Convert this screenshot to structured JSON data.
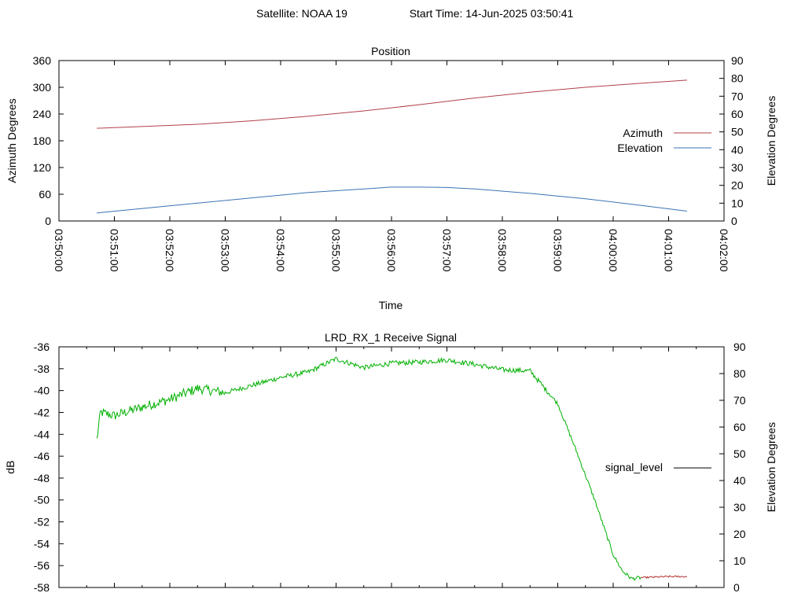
{
  "header": {
    "satellite": "Satellite: NOAA 19",
    "start_time": "Start Time: 14-Jun-2025 03:50:41"
  },
  "colors": {
    "azimuth": "#b0404a",
    "elevation": "#3a73b5",
    "signal": "#00b000",
    "signal_tail": "#b03030",
    "axis": "#000000"
  },
  "chart_data": [
    {
      "type": "line",
      "title": "Position",
      "xlabel": "Time",
      "ylabel": "Azimuth Degrees",
      "y2label": "Elevation Degrees",
      "xlim": [
        "03:50:00",
        "04:02:00"
      ],
      "ylim": [
        0,
        360
      ],
      "y2lim": [
        0,
        90
      ],
      "xticks": [
        "03:50:00",
        "03:51:00",
        "03:52:00",
        "03:53:00",
        "03:54:00",
        "03:55:00",
        "03:56:00",
        "03:57:00",
        "03:58:00",
        "03:59:00",
        "04:00:00",
        "04:01:00",
        "04:02:00"
      ],
      "yticks": [
        "0",
        "60",
        "120",
        "180",
        "240",
        "300",
        "360"
      ],
      "y2ticks": [
        "0",
        "10",
        "20",
        "30",
        "40",
        "50",
        "60",
        "70",
        "80",
        "90"
      ],
      "legend_position": "right",
      "series": [
        {
          "name": "Azimuth",
          "axis": "y",
          "x": [
            "03:50:41",
            "03:51:30",
            "03:52:30",
            "03:53:30",
            "03:54:30",
            "03:55:30",
            "03:56:30",
            "03:57:30",
            "03:58:30",
            "03:59:30",
            "04:00:30",
            "04:01:20"
          ],
          "values": [
            208,
            212,
            217,
            225,
            235,
            247,
            261,
            276,
            289,
            300,
            309,
            316
          ]
        },
        {
          "name": "Elevation",
          "axis": "y2",
          "x": [
            "03:50:41",
            "03:51:30",
            "03:52:30",
            "03:53:30",
            "03:54:30",
            "03:55:30",
            "03:56:00",
            "03:56:30",
            "03:57:00",
            "03:57:30",
            "03:58:30",
            "03:59:30",
            "04:00:30",
            "04:01:20"
          ],
          "values": [
            4.5,
            7,
            10,
            13,
            16,
            18,
            19,
            19,
            18.8,
            18,
            15.5,
            12.5,
            8.8,
            5.5
          ]
        }
      ]
    },
    {
      "type": "line",
      "title": "LRD_RX_1 Receive Signal",
      "ylabel": "dB",
      "y2label": "Elevation Degrees",
      "xlim": [
        "03:50:00",
        "04:02:00"
      ],
      "ylim": [
        -58,
        -36
      ],
      "y2lim": [
        0,
        90
      ],
      "yticks": [
        "-58",
        "-56",
        "-54",
        "-52",
        "-50",
        "-48",
        "-46",
        "-44",
        "-42",
        "-40",
        "-38",
        "-36"
      ],
      "y2ticks": [
        "0",
        "10",
        "20",
        "30",
        "40",
        "50",
        "60",
        "70",
        "80",
        "90"
      ],
      "legend_position": "right",
      "series": [
        {
          "name": "signal_level",
          "axis": "y",
          "x": [
            "03:50:41",
            "03:50:45",
            "03:51:00",
            "03:51:30",
            "03:52:00",
            "03:52:30",
            "03:53:00",
            "03:53:30",
            "03:54:00",
            "03:54:30",
            "03:55:00",
            "03:55:30",
            "03:56:00",
            "03:56:30",
            "03:57:00",
            "03:57:30",
            "03:58:00",
            "03:58:30",
            "03:59:00",
            "03:59:20",
            "03:59:40",
            "04:00:00",
            "04:00:10",
            "04:00:20",
            "04:00:30",
            "04:01:00",
            "04:01:20"
          ],
          "values": [
            -44.5,
            -42,
            -42.3,
            -41.5,
            -40.8,
            -39.8,
            -40.2,
            -39.5,
            -38.8,
            -38.3,
            -37.1,
            -37.9,
            -37.5,
            -37.4,
            -37.2,
            -37.6,
            -38.1,
            -38.2,
            -41.2,
            -45.5,
            -50,
            -55,
            -56.5,
            -57.2,
            -57.1,
            -57.0,
            -57.0
          ]
        }
      ]
    }
  ]
}
